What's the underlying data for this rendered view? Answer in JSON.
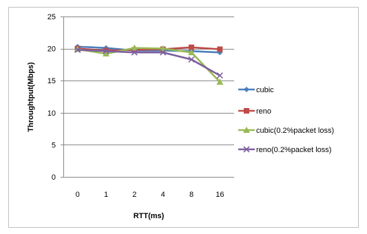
{
  "chart_data": {
    "type": "line",
    "categories": [
      "0",
      "1",
      "2",
      "4",
      "8",
      "16"
    ],
    "xlabel": "RTT(ms)",
    "ylabel": "Throughtput(Mbps)",
    "ylim": [
      0,
      25
    ],
    "yticks": [
      0,
      5,
      10,
      15,
      20,
      25
    ],
    "grid": "horizontal",
    "legend_position": "right",
    "series": [
      {
        "name": "cubic",
        "color": "#4a7ebb",
        "marker": "diamond",
        "values": [
          20.3,
          20.1,
          19.7,
          19.7,
          19.6,
          19.4
        ]
      },
      {
        "name": "reno",
        "color": "#be4b48",
        "marker": "square",
        "values": [
          20.0,
          19.7,
          19.8,
          19.9,
          20.2,
          19.9
        ]
      },
      {
        "name": "cubic(0.2%packet loss)",
        "color": "#98b954",
        "marker": "triangle",
        "values": [
          19.9,
          19.2,
          20.1,
          20.0,
          19.4,
          14.8
        ]
      },
      {
        "name": "reno(0.2%packet loss)",
        "color": "#7d5fa0",
        "marker": "x",
        "values": [
          19.8,
          19.6,
          19.4,
          19.4,
          18.3,
          15.8
        ]
      }
    ]
  }
}
